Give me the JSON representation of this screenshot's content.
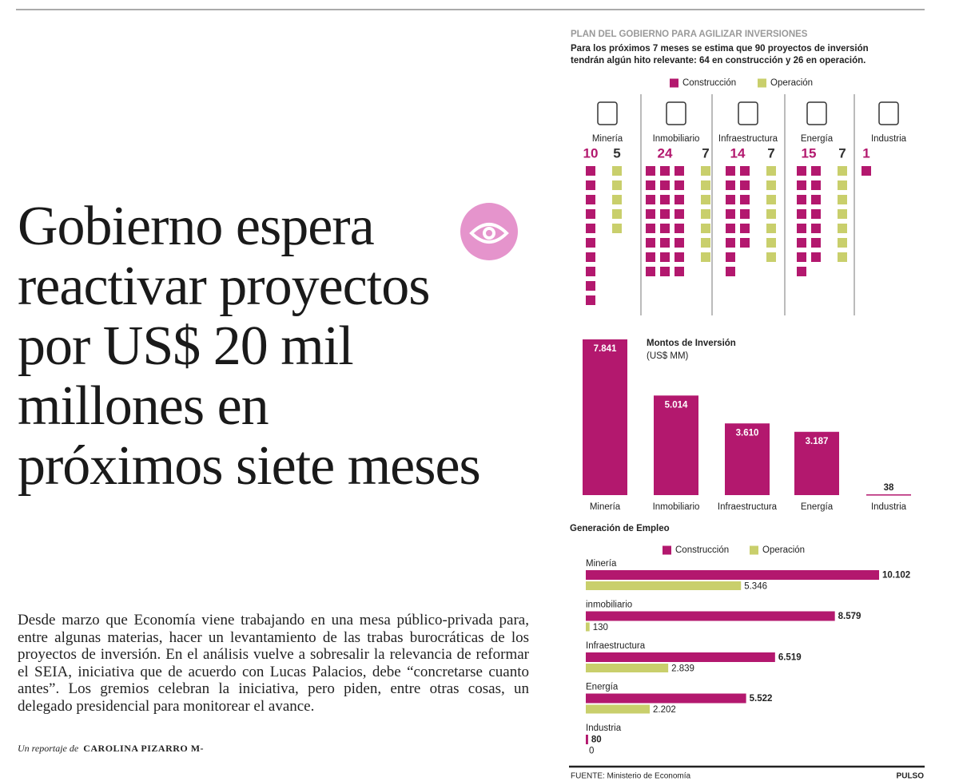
{
  "article": {
    "headline": [
      "Gobierno espera",
      "reactivar proyectos",
      "por US$ 20 mil",
      "millones en",
      "próximos siete meses"
    ],
    "body": "Desde marzo que Economía viene trabajando en una mesa público-privada para, entre algunas materias, hacer un levantamiento de las trabas burocráticas de los proyectos de inversión. En el análisis vuelve a sobresalir la relevancia de reformar el SEIA, iniciativa que de acuerdo con Lucas Palacios, debe “concretarse cuanto antes”. Los gremios celebran la iniciativa, pero piden, entre otras cosas, un delegado presidencial para monitorear el avance.",
    "byline_prefix": "Un reportaje de",
    "byline_name": "CAROLINA PIZARRO M-"
  },
  "chart_data": [
    {
      "type": "waffle",
      "title": "PLAN DEL GOBIERNO PARA AGILIZAR INVERSIONES",
      "subtitle": [
        "Para los próximos 7 meses se estima que 90 proyectos de inversión",
        "tendrán algún hito relevante: 64 en construcción y 26 en operación."
      ],
      "categories": [
        "Minería",
        "Inmobiliario",
        "Infraestructura",
        "Energía",
        "Industria"
      ],
      "series": [
        {
          "name": "Construcción",
          "color": "#b3186e",
          "values": [
            10,
            24,
            14,
            15,
            1
          ]
        },
        {
          "name": "Operación",
          "color": "#c9cf6c",
          "values": [
            5,
            7,
            7,
            7,
            null
          ]
        }
      ]
    },
    {
      "type": "bar",
      "title": "Montos de Inversión",
      "subtitle": "(US$ MM)",
      "categories": [
        "Minería",
        "Inmobiliario",
        "Infraestructura",
        "Energía",
        "Industria"
      ],
      "values": [
        7841,
        5014,
        3610,
        3187,
        38
      ],
      "value_labels": [
        "7.841",
        "5.014",
        "3.610",
        "3.187",
        "38"
      ],
      "color": "#b3186e"
    },
    {
      "type": "hbar",
      "title": "Generación de Empleo",
      "categories": [
        "Minería",
        "inmobiliario",
        "Infraestructura",
        "Energía",
        "Industria"
      ],
      "series": [
        {
          "name": "Construcción",
          "color": "#b3186e",
          "values": [
            10102,
            8579,
            6519,
            5522,
            80
          ],
          "value_labels": [
            "10.102",
            "8.579",
            "6.519",
            "5.522",
            "80"
          ]
        },
        {
          "name": "Operación",
          "color": "#c9cf6c",
          "values": [
            5346,
            130,
            2839,
            2202,
            0
          ],
          "value_labels": [
            "5.346",
            "130",
            "2.839",
            "2.202",
            "0"
          ]
        }
      ]
    }
  ],
  "footer": {
    "source": "FUENTE: Ministerio de Economía",
    "brand": "PULSO"
  }
}
